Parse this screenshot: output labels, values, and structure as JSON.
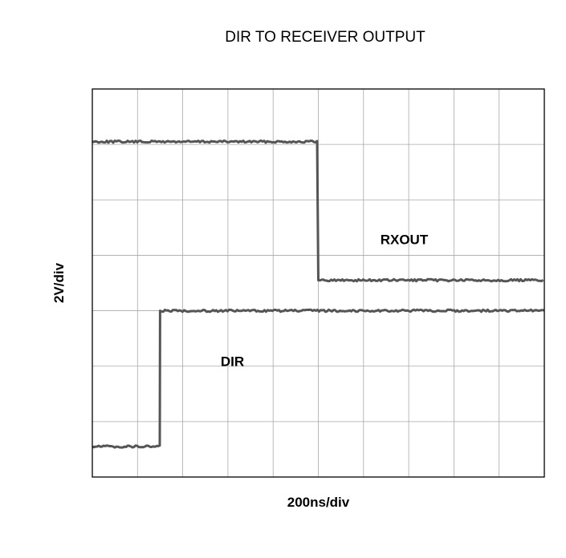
{
  "chart_data": {
    "type": "line",
    "title": "DIR TO RECEIVER OUTPUT",
    "xlabel": "200ns/div",
    "ylabel": "2V/div",
    "grid": true,
    "x_divisions": 10,
    "y_divisions": 7,
    "xlim": [
      0,
      10
    ],
    "ylim": [
      0,
      7
    ],
    "series": [
      {
        "name": "RXOUT",
        "color": "#555555",
        "points": [
          [
            0,
            6.05
          ],
          [
            5.0,
            6.05
          ],
          [
            5.0,
            3.55
          ],
          [
            10,
            3.55
          ]
        ],
        "label_at": [
          6.9,
          4.2
        ]
      },
      {
        "name": "DIR",
        "color": "#555555",
        "points": [
          [
            0,
            0.55
          ],
          [
            1.5,
            0.55
          ],
          [
            1.5,
            3.0
          ],
          [
            10,
            3.0
          ]
        ],
        "label_at": [
          3.1,
          2.0
        ]
      }
    ]
  }
}
